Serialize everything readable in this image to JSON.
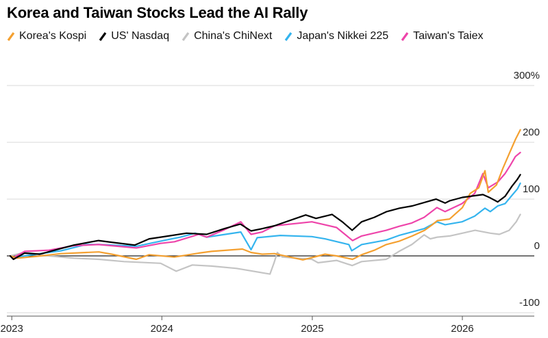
{
  "chart_data": {
    "type": "line",
    "title": "Korea and Taiwan Stocks Lead the AI Rally",
    "xlabel": "",
    "ylabel": "",
    "unit_suffix": "%",
    "x_range": [
      "2022-12-20",
      "2026-06-25"
    ],
    "ylim": [
      -100,
      300
    ],
    "y_ticks": [
      300,
      200,
      100,
      0,
      -100
    ],
    "x_ticks": [
      "2023",
      "2024",
      "2025",
      "2026"
    ],
    "grid": true,
    "legend_position": "top-left",
    "series": [
      {
        "name": "Korea's Kospi",
        "color": "#f4a030",
        "points": [
          [
            "2022-12-28",
            0
          ],
          [
            "2023-01-15",
            -4
          ],
          [
            "2023-03-01",
            -1
          ],
          [
            "2023-05-01",
            4
          ],
          [
            "2023-07-01",
            6
          ],
          [
            "2023-08-01",
            7
          ],
          [
            "2023-09-01",
            3
          ],
          [
            "2023-10-31",
            -6
          ],
          [
            "2023-12-01",
            2
          ],
          [
            "2024-01-31",
            -2
          ],
          [
            "2024-03-31",
            5
          ],
          [
            "2024-05-01",
            8
          ],
          [
            "2024-07-15",
            12
          ],
          [
            "2024-08-05",
            6
          ],
          [
            "2024-09-01",
            3
          ],
          [
            "2024-10-01",
            4
          ],
          [
            "2024-12-09",
            -7
          ],
          [
            "2024-12-31",
            -3
          ],
          [
            "2025-02-01",
            3
          ],
          [
            "2025-03-01",
            0
          ],
          [
            "2025-04-09",
            -6
          ],
          [
            "2025-05-01",
            2
          ],
          [
            "2025-06-01",
            10
          ],
          [
            "2025-06-30",
            20
          ],
          [
            "2025-08-01",
            26
          ],
          [
            "2025-09-01",
            35
          ],
          [
            "2025-10-01",
            45
          ],
          [
            "2025-10-20",
            55
          ],
          [
            "2025-11-01",
            62
          ],
          [
            "2025-12-01",
            65
          ],
          [
            "2026-01-01",
            85
          ],
          [
            "2026-01-20",
            110
          ],
          [
            "2026-02-10",
            120
          ],
          [
            "2026-02-25",
            150
          ],
          [
            "2026-03-05",
            112
          ],
          [
            "2026-03-25",
            125
          ],
          [
            "2026-04-10",
            155
          ],
          [
            "2026-04-25",
            180
          ],
          [
            "2026-05-10",
            205
          ],
          [
            "2026-05-22",
            222
          ]
        ]
      },
      {
        "name": "US' Nasdaq",
        "color": "#000000",
        "points": [
          [
            "2022-12-28",
            0
          ],
          [
            "2023-01-05",
            -6
          ],
          [
            "2023-02-01",
            5
          ],
          [
            "2023-03-10",
            3
          ],
          [
            "2023-04-15",
            10
          ],
          [
            "2023-06-01",
            19
          ],
          [
            "2023-07-31",
            27
          ],
          [
            "2023-09-01",
            24
          ],
          [
            "2023-10-27",
            19
          ],
          [
            "2023-12-01",
            30
          ],
          [
            "2023-12-29",
            33
          ],
          [
            "2024-03-01",
            40
          ],
          [
            "2024-04-19",
            38
          ],
          [
            "2024-06-01",
            48
          ],
          [
            "2024-07-10",
            56
          ],
          [
            "2024-08-05",
            44
          ],
          [
            "2024-09-01",
            48
          ],
          [
            "2024-10-01",
            53
          ],
          [
            "2024-12-16",
            72
          ],
          [
            "2025-01-10",
            66
          ],
          [
            "2025-02-18",
            73
          ],
          [
            "2025-03-15",
            60
          ],
          [
            "2025-04-08",
            45
          ],
          [
            "2025-05-01",
            60
          ],
          [
            "2025-06-01",
            68
          ],
          [
            "2025-07-01",
            78
          ],
          [
            "2025-08-01",
            84
          ],
          [
            "2025-09-01",
            88
          ],
          [
            "2025-10-29",
            100
          ],
          [
            "2025-11-20",
            93
          ],
          [
            "2025-12-01",
            97
          ],
          [
            "2026-01-01",
            103
          ],
          [
            "2026-01-31",
            106
          ],
          [
            "2026-02-20",
            108
          ],
          [
            "2026-03-10",
            102
          ],
          [
            "2026-03-28",
            95
          ],
          [
            "2026-04-15",
            105
          ],
          [
            "2026-05-01",
            122
          ],
          [
            "2026-05-15",
            135
          ],
          [
            "2026-05-22",
            143
          ]
        ]
      },
      {
        "name": "China's ChiNext",
        "color": "#c4c4c4",
        "points": [
          [
            "2022-12-28",
            0
          ],
          [
            "2023-02-01",
            6
          ],
          [
            "2023-02-15",
            5
          ],
          [
            "2023-04-01",
            0
          ],
          [
            "2023-06-01",
            -4
          ],
          [
            "2023-08-01",
            -6
          ],
          [
            "2023-10-01",
            -10
          ],
          [
            "2023-12-29",
            -13
          ],
          [
            "2024-02-05",
            -27
          ],
          [
            "2024-03-15",
            -16
          ],
          [
            "2024-05-01",
            -18
          ],
          [
            "2024-07-01",
            -22
          ],
          [
            "2024-09-20",
            -32
          ],
          [
            "2024-09-30",
            -12
          ],
          [
            "2024-10-08",
            6
          ],
          [
            "2024-10-20",
            -2
          ],
          [
            "2024-12-31",
            -6
          ],
          [
            "2025-01-15",
            -12
          ],
          [
            "2025-03-01",
            -8
          ],
          [
            "2025-04-08",
            -17
          ],
          [
            "2025-05-01",
            -10
          ],
          [
            "2025-06-30",
            -6
          ],
          [
            "2025-07-31",
            8
          ],
          [
            "2025-08-31",
            20
          ],
          [
            "2025-09-30",
            37
          ],
          [
            "2025-10-15",
            30
          ],
          [
            "2025-11-01",
            33
          ],
          [
            "2025-12-01",
            35
          ],
          [
            "2026-01-01",
            40
          ],
          [
            "2026-02-01",
            45
          ],
          [
            "2026-03-10",
            40
          ],
          [
            "2026-04-01",
            38
          ],
          [
            "2026-04-25",
            45
          ],
          [
            "2026-05-12",
            60
          ],
          [
            "2026-05-22",
            73
          ]
        ]
      },
      {
        "name": "Japan's Nikkei 225",
        "color": "#34b4ee",
        "points": [
          [
            "2022-12-28",
            0
          ],
          [
            "2023-01-04",
            -3
          ],
          [
            "2023-03-01",
            3
          ],
          [
            "2023-05-01",
            9
          ],
          [
            "2023-06-30",
            20
          ],
          [
            "2023-08-01",
            20
          ],
          [
            "2023-10-31",
            17
          ],
          [
            "2023-12-29",
            26
          ],
          [
            "2024-02-15",
            33
          ],
          [
            "2024-03-22",
            40
          ],
          [
            "2024-04-19",
            33
          ],
          [
            "2024-07-11",
            42
          ],
          [
            "2024-08-05",
            11
          ],
          [
            "2024-08-20",
            32
          ],
          [
            "2024-10-15",
            36
          ],
          [
            "2024-12-31",
            34
          ],
          [
            "2025-02-01",
            30
          ],
          [
            "2025-03-31",
            20
          ],
          [
            "2025-04-07",
            9
          ],
          [
            "2025-05-01",
            20
          ],
          [
            "2025-06-30",
            28
          ],
          [
            "2025-07-31",
            36
          ],
          [
            "2025-08-31",
            42
          ],
          [
            "2025-09-30",
            48
          ],
          [
            "2025-10-31",
            60
          ],
          [
            "2025-11-20",
            55
          ],
          [
            "2025-12-31",
            60
          ],
          [
            "2026-01-31",
            70
          ],
          [
            "2026-02-25",
            84
          ],
          [
            "2026-03-10",
            78
          ],
          [
            "2026-03-28",
            88
          ],
          [
            "2026-04-15",
            92
          ],
          [
            "2026-05-01",
            106
          ],
          [
            "2026-05-15",
            118
          ],
          [
            "2026-05-22",
            128
          ]
        ]
      },
      {
        "name": "Taiwan's Taiex",
        "color": "#ee44aa",
        "points": [
          [
            "2022-12-28",
            0
          ],
          [
            "2023-01-05",
            -3
          ],
          [
            "2023-02-01",
            8
          ],
          [
            "2023-04-01",
            10
          ],
          [
            "2023-06-01",
            18
          ],
          [
            "2023-07-31",
            20
          ],
          [
            "2023-10-31",
            14
          ],
          [
            "2023-12-29",
            22
          ],
          [
            "2024-02-01",
            25
          ],
          [
            "2024-03-31",
            38
          ],
          [
            "2024-04-19",
            33
          ],
          [
            "2024-06-01",
            46
          ],
          [
            "2024-07-11",
            60
          ],
          [
            "2024-08-05",
            38
          ],
          [
            "2024-09-01",
            42
          ],
          [
            "2024-10-01",
            53
          ],
          [
            "2024-12-31",
            60
          ],
          [
            "2025-01-31",
            55
          ],
          [
            "2025-03-01",
            50
          ],
          [
            "2025-04-09",
            27
          ],
          [
            "2025-05-01",
            35
          ],
          [
            "2025-06-30",
            45
          ],
          [
            "2025-07-31",
            52
          ],
          [
            "2025-08-31",
            58
          ],
          [
            "2025-09-30",
            68
          ],
          [
            "2025-10-31",
            85
          ],
          [
            "2025-11-20",
            78
          ],
          [
            "2025-12-31",
            92
          ],
          [
            "2026-01-31",
            110
          ],
          [
            "2026-02-20",
            145
          ],
          [
            "2026-03-05",
            120
          ],
          [
            "2026-03-28",
            130
          ],
          [
            "2026-04-15",
            145
          ],
          [
            "2026-04-28",
            160
          ],
          [
            "2026-05-10",
            175
          ],
          [
            "2026-05-22",
            182
          ]
        ]
      }
    ]
  }
}
